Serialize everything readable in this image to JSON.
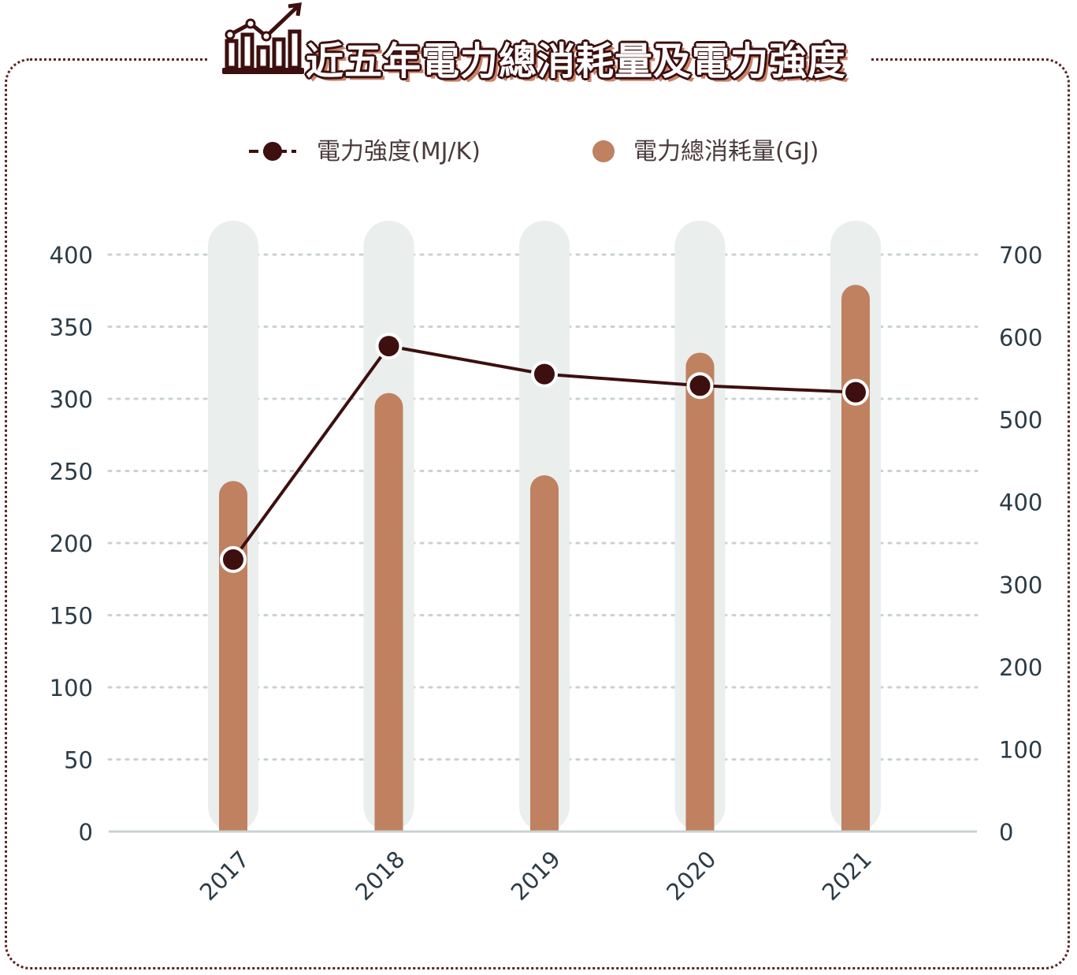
{
  "title": "近五年電力總消耗量及電力強度",
  "icons": {
    "title_icon": "rising-bar-chart-icon"
  },
  "colors": {
    "bar": "#bf8160",
    "bar_track": "#eaeeed",
    "line": "#3d0f0f",
    "frame": "#5a2424",
    "grid": "#c9d2d2",
    "axis": "#c9d2d2"
  },
  "legend": {
    "line_label": "電力強度(MJ/K)",
    "bar_label": "電力總消耗量(GJ)"
  },
  "chart_data": {
    "type": "bar",
    "categories": [
      "2017",
      "2018",
      "2019",
      "2020",
      "2021"
    ],
    "series": [
      {
        "name": "電力總消耗量(GJ)",
        "type": "bar",
        "axis": "left",
        "values": [
          243,
          304,
          247,
          332,
          379
        ]
      },
      {
        "name": "電力強度(MJ/K)",
        "type": "line",
        "axis": "right",
        "values": [
          330,
          589,
          555,
          541,
          533
        ]
      }
    ],
    "ylim_left": [
      0,
      400
    ],
    "yticks_left": [
      "0",
      "50",
      "100",
      "150",
      "200",
      "250",
      "300",
      "350",
      "400"
    ],
    "ylim_right": [
      0,
      700
    ],
    "yticks_right": [
      "0",
      "100",
      "200",
      "300",
      "400",
      "500",
      "600",
      "700"
    ],
    "grid": true,
    "legend_position": "top"
  }
}
